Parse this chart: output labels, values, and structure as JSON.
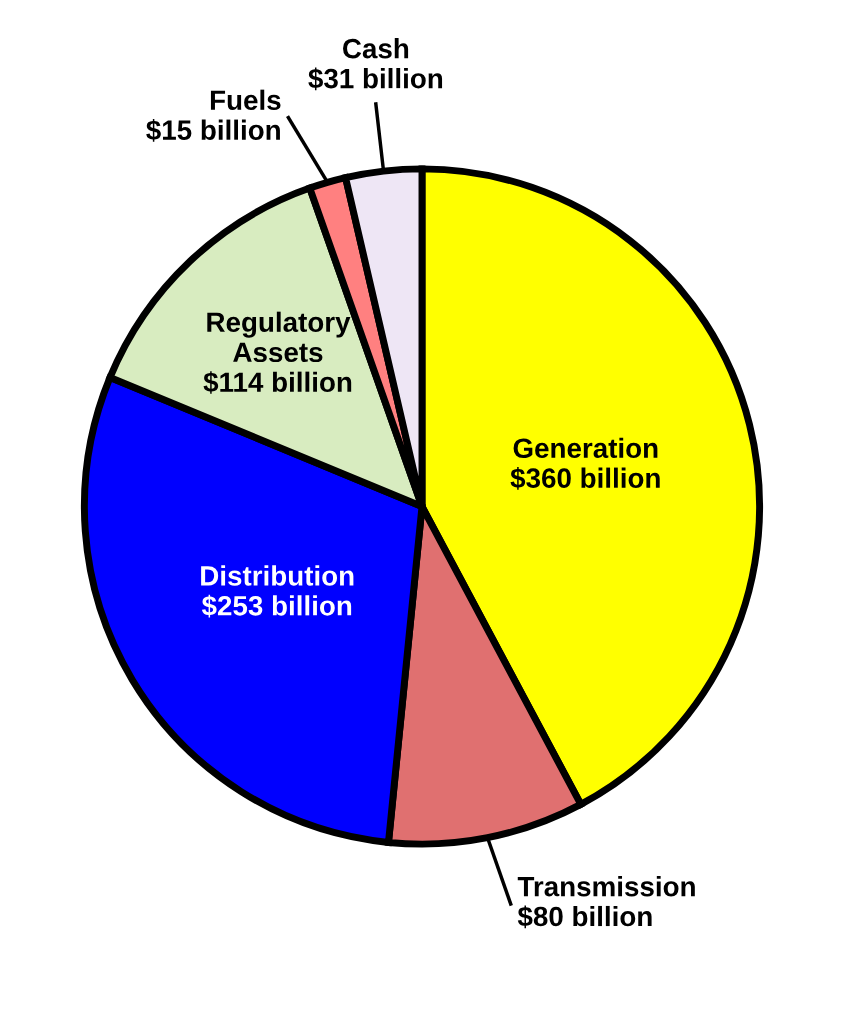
{
  "chart_data": {
    "type": "pie",
    "categories": [
      "Generation",
      "Transmission",
      "Distribution",
      "Regulatory Assets",
      "Fuels",
      "Cash"
    ],
    "values": [
      360,
      80,
      253,
      114,
      15,
      31
    ],
    "value_labels": [
      "$360 billion",
      "$80 billion",
      "$253 billion",
      "$114 billion",
      "$15 billion",
      "$31 billion"
    ],
    "colors": [
      "#ffff00",
      "#e07070",
      "#0000ff",
      "#d8ecc0",
      "#ff8080",
      "#eee6f5"
    ],
    "legend": false
  }
}
